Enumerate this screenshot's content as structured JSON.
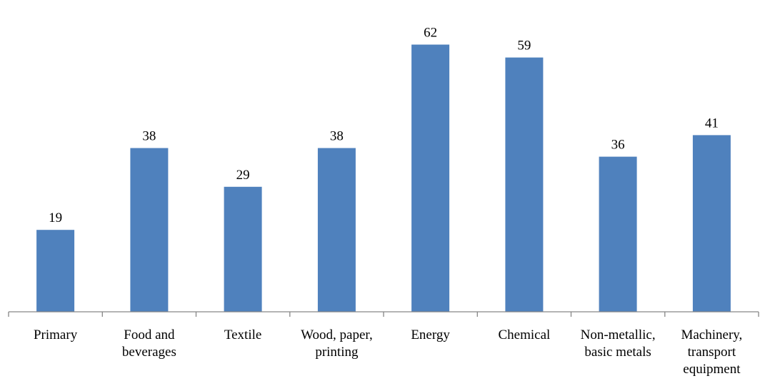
{
  "chart_data": {
    "type": "bar",
    "categories": [
      [
        "Primary"
      ],
      [
        "Food and",
        "beverages"
      ],
      [
        "Textile"
      ],
      [
        "Wood, paper,",
        "printing"
      ],
      [
        "Energy"
      ],
      [
        "Chemical"
      ],
      [
        "Non-metallic,",
        "basic metals"
      ],
      [
        "Machinery,",
        "transport",
        "equipment"
      ]
    ],
    "values": [
      19,
      38,
      29,
      38,
      62,
      59,
      36,
      41
    ],
    "title": "",
    "xlabel": "",
    "ylabel": "",
    "ylim": [
      0,
      70
    ],
    "grid": false,
    "legend": "none",
    "data_labels": true,
    "bar_color": "#4F81BD",
    "axis_color": "#868686"
  }
}
